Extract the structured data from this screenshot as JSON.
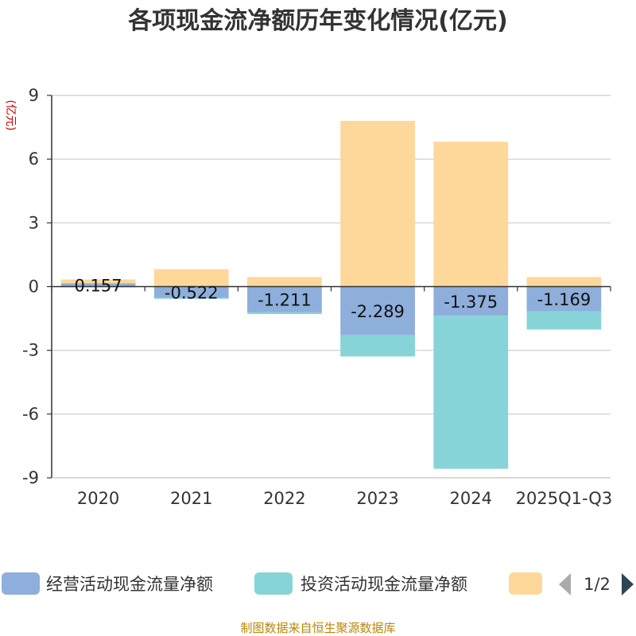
{
  "chart_data": {
    "type": "bar",
    "stacked": true,
    "title": "各项现金流净额历年变化情况(亿元)",
    "ylabel": "(亿元)",
    "xlabel": "",
    "ylim": [
      -9,
      9
    ],
    "yticks": [
      9,
      6,
      3,
      0,
      -3,
      -6,
      -9
    ],
    "grid": true,
    "categories": [
      "2020",
      "2021",
      "2022",
      "2023",
      "2024",
      "2025Q1-Q3"
    ],
    "series": [
      {
        "name": "经营活动现金流量净额",
        "color": "#8eaedb",
        "values": [
          0.157,
          -0.522,
          -1.211,
          -2.289,
          -1.375,
          -1.169
        ]
      },
      {
        "name": "投资活动现金流量净额",
        "color": "#86d4d8",
        "values": [
          -0.03,
          -0.05,
          -0.08,
          -1.0,
          -7.2,
          -0.85
        ]
      },
      {
        "name": "",
        "color": "#fdd89a",
        "values": [
          0.18,
          0.82,
          0.45,
          7.8,
          6.82,
          0.45
        ]
      }
    ],
    "data_labels": [
      "0.157",
      "-0.522",
      "-1.211",
      "-2.289",
      "-1.375",
      "-1.169"
    ],
    "legend": {
      "position": "bottom",
      "page": "1/2"
    },
    "source": "制图数据来自恒生聚源数据库"
  }
}
